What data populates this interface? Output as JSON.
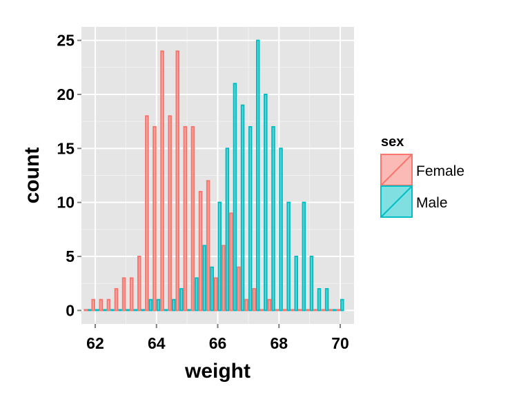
{
  "chart_data": {
    "type": "bar",
    "subtype": "histogram-dodged",
    "title": "",
    "xlabel": "weight",
    "ylabel": "count",
    "xlim": [
      61.55,
      70.45
    ],
    "ylim": [
      -1.25,
      26.25
    ],
    "xticks": [
      62,
      64,
      66,
      68,
      70
    ],
    "xtick_labels": [
      "62",
      "64",
      "66",
      "68",
      "70"
    ],
    "yticks": [
      0,
      5,
      10,
      15,
      20,
      25
    ],
    "ytick_labels": [
      "0",
      "5",
      "10",
      "15",
      "20",
      "25"
    ],
    "binwidth": 0.25,
    "grid": true,
    "legend": {
      "title": "sex",
      "position": "right",
      "entries": [
        {
          "label": "Female",
          "color": "#F8766D"
        },
        {
          "label": "Male",
          "color": "#00BFC4"
        }
      ]
    },
    "bin_centers": [
      61.75,
      62.0,
      62.25,
      62.5,
      62.75,
      63.0,
      63.25,
      63.5,
      63.75,
      64.0,
      64.25,
      64.5,
      64.75,
      65.0,
      65.25,
      65.5,
      65.75,
      66.0,
      66.25,
      66.5,
      66.75,
      67.0,
      67.25,
      67.5,
      67.75,
      68.0,
      68.25,
      68.5,
      68.75,
      69.0,
      69.25,
      69.5,
      69.75,
      70.0
    ],
    "series": [
      {
        "name": "Female",
        "color": "#F8766D",
        "values": [
          0,
          1,
          1,
          1,
          2,
          3,
          3,
          5,
          18,
          17,
          24,
          18,
          24,
          17,
          17,
          11,
          12,
          3,
          6,
          9,
          4,
          1,
          2,
          0,
          1,
          0,
          0,
          0,
          0,
          0,
          0,
          0,
          0,
          0
        ]
      },
      {
        "name": "Male",
        "color": "#00BFC4",
        "values": [
          0,
          0,
          0,
          0,
          0,
          0,
          0,
          0,
          1,
          1,
          0,
          1,
          2,
          0,
          3,
          6,
          4,
          10,
          15,
          21,
          19,
          17,
          25,
          20,
          17,
          15,
          10,
          5,
          10,
          5,
          2,
          2,
          0,
          1
        ]
      }
    ]
  },
  "colors": {
    "panel_background": "#E5E5E5",
    "grid_major": "#FFFFFF",
    "grid_minor": "#F2F2F2",
    "female": "#F8766D",
    "male": "#00BFC4"
  }
}
